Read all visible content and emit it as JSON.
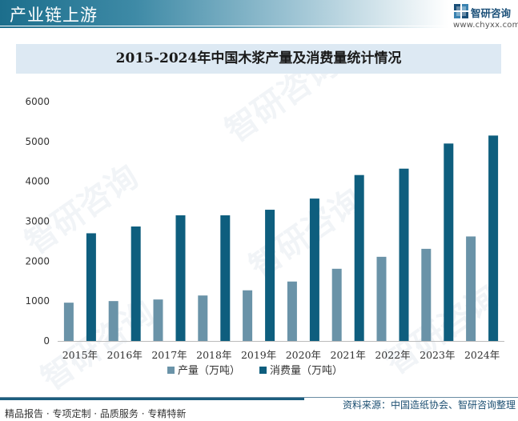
{
  "header": {
    "title": "产业链上游"
  },
  "brand": {
    "name": "智研咨询",
    "url": "www.chyxx.com",
    "logo_icon": "chyxx-logo-icon"
  },
  "chart_data": {
    "type": "bar",
    "title": "2015-2024年中国木浆产量及消费量统计情况",
    "categories": [
      "2015年",
      "2016年",
      "2017年",
      "2018年",
      "2019年",
      "2020年",
      "2021年",
      "2022年",
      "2023年",
      "2024年"
    ],
    "series": [
      {
        "name": "产量（万吨）",
        "color": "#6a93a8",
        "values": [
          960,
          1000,
          1040,
          1140,
          1270,
          1490,
          1810,
          2110,
          2310,
          2620
        ]
      },
      {
        "name": "消费量（万吨）",
        "color": "#0e5e7e",
        "values": [
          2700,
          2870,
          3150,
          3150,
          3290,
          3570,
          4160,
          4320,
          4950,
          5150
        ]
      }
    ],
    "ylim": [
      0,
      6000
    ],
    "yticks": [
      "0",
      "1000",
      "2000",
      "3000",
      "4000",
      "5000",
      "6000"
    ],
    "xlabel": "",
    "ylabel": "",
    "grid": false,
    "legend": "bottom-center"
  },
  "footer": {
    "source": "资料来源：中国造纸协会、智研咨询整理",
    "services": "精品报告 · 专项定制 · 品质服务 · 专精特新"
  },
  "watermarks": {
    "cn": "智研咨询"
  }
}
